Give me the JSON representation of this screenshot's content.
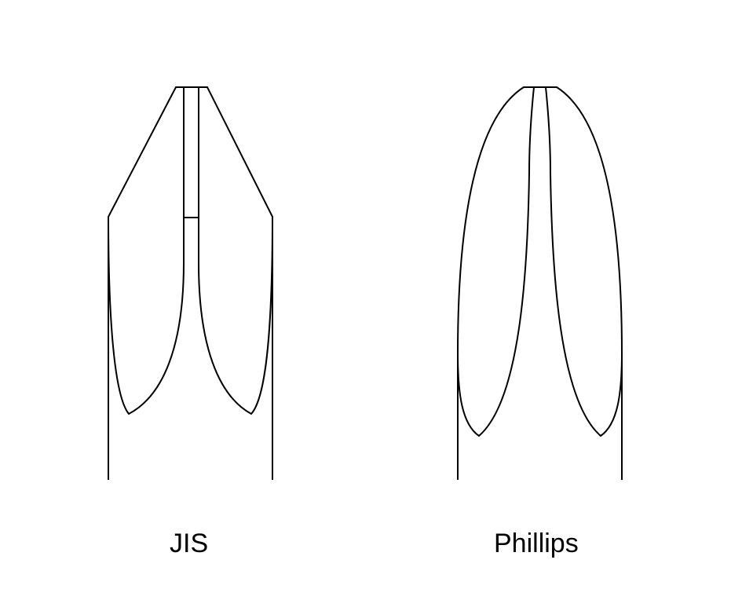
{
  "labels": {
    "left": "JIS",
    "right": "Phillips"
  },
  "colors": {
    "stroke": "#000000",
    "background": "#ffffff"
  }
}
